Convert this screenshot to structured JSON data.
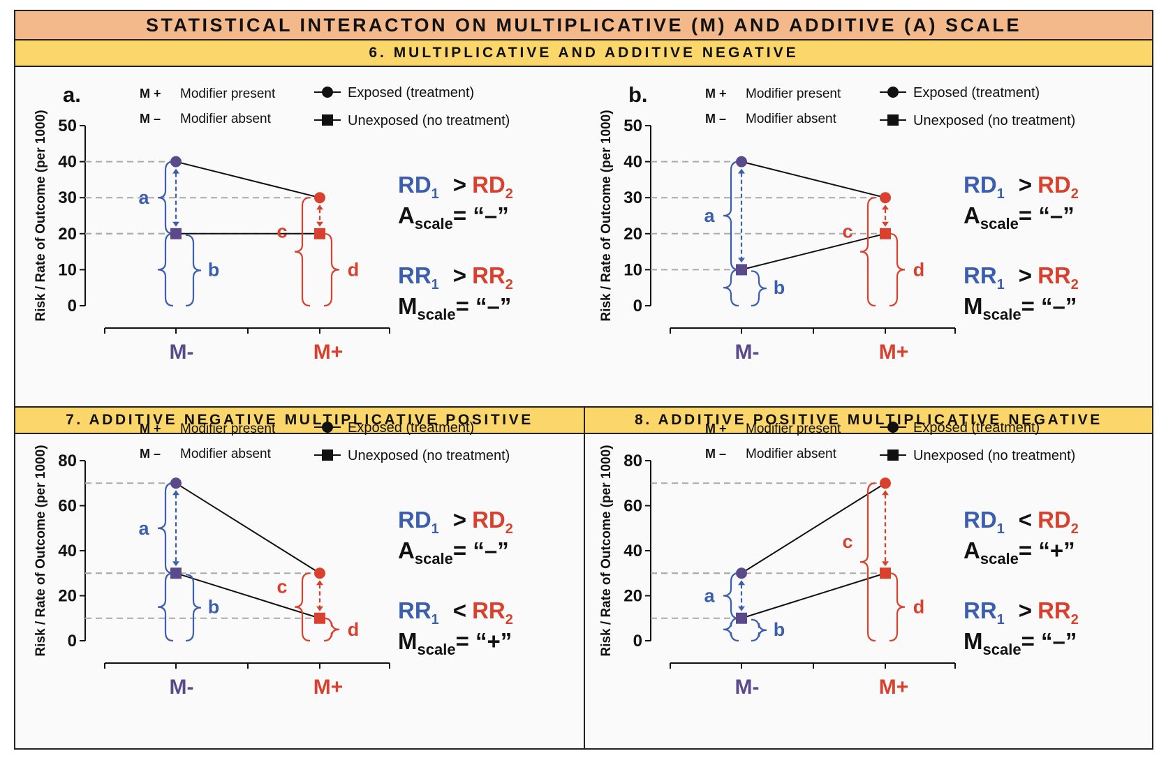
{
  "header": {
    "title": "STATISTICAL INTERACTON ON MULTIPLICATIVE (M)  AND ADDITIVE (A) SCALE"
  },
  "sections": {
    "s6": "6. MULTIPLICATIVE  AND ADDITIVE NEGATIVE",
    "s7": "7. ADDITIVE  NEGATIVE MULTIPLICATIVE POSITIVE",
    "s8": "8. ADDITIVE POSITIVE MULTIPLICATIVE NEGATIVE"
  },
  "legend": {
    "m_plus_code": "M +",
    "m_plus_text": "Modifier present",
    "m_minus_code": "M –",
    "m_minus_text": "Modifier absent",
    "exposed": "Exposed (treatment)",
    "unexposed": "Unexposed (no treatment)"
  },
  "colors": {
    "blue": "#3b5fae",
    "red": "#d9412e",
    "purple": "#5b4a8b",
    "grid_dash": "#aaaaaa",
    "banner_main": "#f3b98a",
    "banner_section": "#fbd66b"
  },
  "chart_data": [
    {
      "type": "line",
      "panel_label": "a.",
      "ylabel": "Risk / Rate of Outcome (per 1000)",
      "categories": [
        "M-",
        "M+"
      ],
      "ylim": [
        0,
        50
      ],
      "yticks": [
        0,
        10,
        20,
        30,
        40,
        50
      ],
      "series": [
        {
          "marker": "circle",
          "values": [
            40,
            30
          ]
        },
        {
          "marker": "square",
          "values": [
            20,
            20
          ]
        }
      ],
      "brackets": [
        "a",
        "b",
        "c",
        "d"
      ],
      "relations": [
        {
          "lhs": "RD",
          "sub": "1",
          "op": ">",
          "rhs": "RD",
          "rsub": "2",
          "scale": "A",
          "scale_sub": "scale",
          "sign": "“–”"
        },
        {
          "lhs": "RR",
          "sub": "1",
          "op": ">",
          "rhs": "RR",
          "rsub": "2",
          "scale": "M",
          "scale_sub": "scale",
          "sign": "“–”"
        }
      ]
    },
    {
      "type": "line",
      "panel_label": "b.",
      "ylabel": "Risk / Rate of Outcome (per 1000)",
      "categories": [
        "M-",
        "M+"
      ],
      "ylim": [
        0,
        50
      ],
      "yticks": [
        0,
        10,
        20,
        30,
        40,
        50
      ],
      "series": [
        {
          "marker": "circle",
          "values": [
            40,
            30
          ]
        },
        {
          "marker": "square",
          "values": [
            10,
            20
          ]
        }
      ],
      "brackets": [
        "a",
        "b",
        "c",
        "d"
      ],
      "relations": [
        {
          "lhs": "RD",
          "sub": "1",
          "op": ">",
          "rhs": "RD",
          "rsub": "2",
          "scale": "A",
          "scale_sub": "scale",
          "sign": "“–”"
        },
        {
          "lhs": "RR",
          "sub": "1",
          "op": ">",
          "rhs": "RR",
          "rsub": "2",
          "scale": "M",
          "scale_sub": "scale",
          "sign": "“–”"
        }
      ]
    },
    {
      "type": "line",
      "panel_label": "",
      "ylabel": "Risk / Rate of Outcome (per 1000)",
      "categories": [
        "M-",
        "M+"
      ],
      "ylim": [
        0,
        80
      ],
      "yticks": [
        0,
        20,
        40,
        60,
        80
      ],
      "series": [
        {
          "marker": "circle",
          "values": [
            70,
            30
          ]
        },
        {
          "marker": "square",
          "values": [
            30,
            10
          ]
        }
      ],
      "brackets": [
        "a",
        "b",
        "c",
        "d"
      ],
      "relations": [
        {
          "lhs": "RD",
          "sub": "1",
          "op": ">",
          "rhs": "RD",
          "rsub": "2",
          "scale": "A",
          "scale_sub": "scale",
          "sign": "“–”"
        },
        {
          "lhs": "RR",
          "sub": "1",
          "op": "<",
          "rhs": "RR",
          "rsub": "2",
          "scale": "M",
          "scale_sub": "scale",
          "sign": "“+”"
        }
      ]
    },
    {
      "type": "line",
      "panel_label": "",
      "ylabel": "Risk / Rate of Outcome (per 1000)",
      "categories": [
        "M-",
        "M+"
      ],
      "ylim": [
        0,
        80
      ],
      "yticks": [
        0,
        20,
        40,
        60,
        80
      ],
      "series": [
        {
          "marker": "circle",
          "values": [
            30,
            70
          ]
        },
        {
          "marker": "square",
          "values": [
            10,
            30
          ]
        }
      ],
      "brackets": [
        "a",
        "b",
        "c",
        "d"
      ],
      "relations": [
        {
          "lhs": "RD",
          "sub": "1",
          "op": "<",
          "rhs": "RD",
          "rsub": "2",
          "scale": "A",
          "scale_sub": "scale",
          "sign": "“+”"
        },
        {
          "lhs": "RR",
          "sub": "1",
          "op": ">",
          "rhs": "RR",
          "rsub": "2",
          "scale": "M",
          "scale_sub": "scale",
          "sign": "“–”"
        }
      ]
    }
  ]
}
